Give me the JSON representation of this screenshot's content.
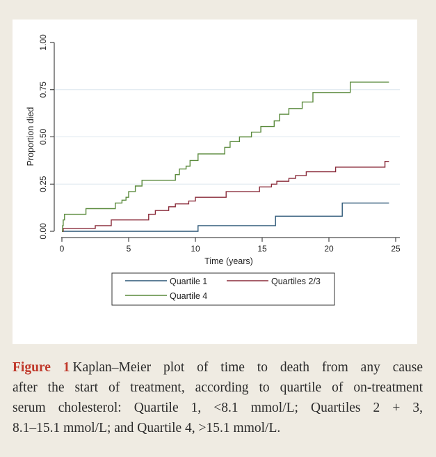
{
  "chart_data": {
    "type": "line",
    "subtype": "kaplan-meier-step",
    "xlabel": "Time (years)",
    "ylabel": "Proportion died",
    "xlim": [
      0,
      25
    ],
    "ylim": [
      0,
      1
    ],
    "xticks": [
      0,
      5,
      10,
      15,
      20,
      25
    ],
    "yticks": [
      0,
      0.25,
      0.5,
      0.75,
      1
    ],
    "xtick_labels": [
      "0",
      "5",
      "10",
      "15",
      "20",
      "25"
    ],
    "ytick_labels": [
      "0.00",
      "0.25",
      "0.50",
      "0.75",
      "1.00"
    ],
    "grid": true,
    "legend_position": "bottom",
    "series": [
      {
        "name": "Quartile 1",
        "color": "#2c5777",
        "x": [
          0,
          10.2,
          16.0,
          21.0,
          24.5
        ],
        "y": [
          0,
          0.03,
          0.08,
          0.15,
          0.15
        ]
      },
      {
        "name": "Quartiles 2/3",
        "color": "#8a2b3a",
        "x": [
          0,
          0.1,
          2.5,
          3.7,
          6.5,
          7.0,
          8.0,
          8.5,
          9.5,
          10.0,
          12.3,
          14.8,
          15.7,
          16.1,
          17.0,
          17.5,
          18.3,
          20.5,
          24.2,
          24.5
        ],
        "y": [
          0,
          0.015,
          0.03,
          0.06,
          0.09,
          0.11,
          0.13,
          0.145,
          0.16,
          0.18,
          0.21,
          0.235,
          0.25,
          0.265,
          0.28,
          0.295,
          0.315,
          0.34,
          0.37,
          0.37
        ]
      },
      {
        "name": "Quartile 4",
        "color": "#5a8a3c",
        "x": [
          0,
          0.05,
          0.1,
          0.2,
          1.8,
          4.0,
          4.5,
          4.8,
          5.0,
          5.5,
          6.0,
          8.5,
          8.8,
          9.3,
          9.6,
          10.2,
          12.2,
          12.6,
          13.3,
          14.2,
          14.9,
          15.9,
          16.3,
          17.0,
          18.0,
          18.8,
          21.6,
          24.5
        ],
        "y": [
          0,
          0.03,
          0.06,
          0.09,
          0.12,
          0.15,
          0.165,
          0.18,
          0.21,
          0.24,
          0.27,
          0.3,
          0.33,
          0.345,
          0.375,
          0.41,
          0.445,
          0.475,
          0.5,
          0.525,
          0.555,
          0.585,
          0.62,
          0.65,
          0.685,
          0.735,
          0.79,
          0.79
        ]
      }
    ]
  },
  "caption": {
    "label": "Figure 1",
    "line1": "Kaplan–Meier plot of time to death from any cause",
    "line2": "after the start of treatment, according to quartile of on-treatment",
    "line3": "serum cholesterol: Quartile 1, <8.1 mmol/L; Quartiles 2 + 3,",
    "line4": "8.1–15.1 mmol/L; and Quartile 4, >15.1 mmol/L."
  },
  "colors": {
    "background": "#efebe2",
    "panel": "#ffffff",
    "grid": "#dbe6ee",
    "caption_label": "#c0392b"
  }
}
